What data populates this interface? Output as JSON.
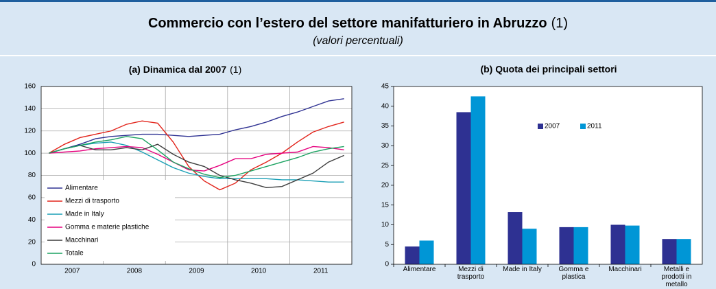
{
  "header": {
    "title": "Commercio con l’estero del settore manifatturiero in Abruzzo",
    "note": "(1)",
    "subtitle": "(valori percentuali)"
  },
  "chart_data": [
    {
      "type": "line",
      "title": "(a) Dinamica dal 2007",
      "title_note": "(1)",
      "categories": [
        "2007",
        "2008",
        "2009",
        "2010",
        "2011"
      ],
      "x": [
        2007.125,
        2007.375,
        2007.625,
        2007.875,
        2008.125,
        2008.375,
        2008.625,
        2008.875,
        2009.125,
        2009.375,
        2009.625,
        2009.875,
        2010.125,
        2010.375,
        2010.625,
        2010.875,
        2011.125,
        2011.375,
        2011.625,
        2011.875
      ],
      "xlim": [
        2007,
        2012
      ],
      "xgrid": [
        2008,
        2009,
        2010,
        2011
      ],
      "ylim": [
        0,
        160
      ],
      "yticks": [
        0,
        20,
        40,
        60,
        80,
        100,
        120,
        140,
        160
      ],
      "grid": true,
      "legend": "bottom-left",
      "series": [
        {
          "name": "Alimentare",
          "color": "#2e3192",
          "values": [
            100,
            104,
            108,
            113,
            115,
            116,
            117,
            117,
            116,
            115,
            116,
            117,
            121,
            124,
            128,
            133,
            137,
            142,
            147,
            149
          ]
        },
        {
          "name": "Mezzi di trasporto",
          "color": "#e2231a",
          "values": [
            100,
            108,
            114,
            117,
            120,
            126,
            129,
            127,
            110,
            88,
            75,
            67,
            73,
            85,
            92,
            100,
            110,
            119,
            124,
            128
          ]
        },
        {
          "name": "Made in Italy",
          "color": "#1a9fb5",
          "values": [
            100,
            104,
            107,
            109,
            110,
            107,
            101,
            94,
            87,
            82,
            79,
            77,
            77,
            77,
            77,
            76,
            76,
            75,
            74,
            74
          ]
        },
        {
          "name": "Gomma e materie plastiche",
          "color": "#e6007e",
          "values": [
            100,
            101,
            102,
            104,
            105,
            106,
            105,
            99,
            92,
            85,
            84,
            89,
            95,
            95,
            99,
            100,
            101,
            106,
            105,
            103
          ]
        },
        {
          "name": "Macchinari",
          "color": "#3c3c3c",
          "values": [
            100,
            104,
            107,
            103,
            103,
            105,
            103,
            108,
            99,
            92,
            88,
            80,
            76,
            73,
            69,
            70,
            76,
            82,
            92,
            98
          ]
        },
        {
          "name": "Totale",
          "color": "#1aa260",
          "values": [
            100,
            104,
            107,
            110,
            112,
            115,
            113,
            103,
            92,
            86,
            81,
            78,
            80,
            84,
            88,
            92,
            96,
            101,
            104,
            106
          ]
        }
      ]
    },
    {
      "type": "bar",
      "title": "(b) Quota dei principali settori",
      "categories": [
        "Alimentare",
        "Mezzi di trasporto",
        "Made in Italy",
        "Gomma e plastica",
        "Macchinari",
        "Metalli e prodotti in metallo"
      ],
      "ylim": [
        0,
        45
      ],
      "yticks": [
        0,
        5,
        10,
        15,
        20,
        25,
        30,
        35,
        40,
        45
      ],
      "grid": false,
      "legend": "top-right",
      "series": [
        {
          "name": "2007",
          "color": "#2e3192",
          "values": [
            4.5,
            38.5,
            13.2,
            9.4,
            10,
            6.4
          ]
        },
        {
          "name": "2011",
          "color": "#0096d6",
          "values": [
            6,
            42.5,
            9,
            9.4,
            9.8,
            6.4
          ]
        }
      ]
    }
  ]
}
